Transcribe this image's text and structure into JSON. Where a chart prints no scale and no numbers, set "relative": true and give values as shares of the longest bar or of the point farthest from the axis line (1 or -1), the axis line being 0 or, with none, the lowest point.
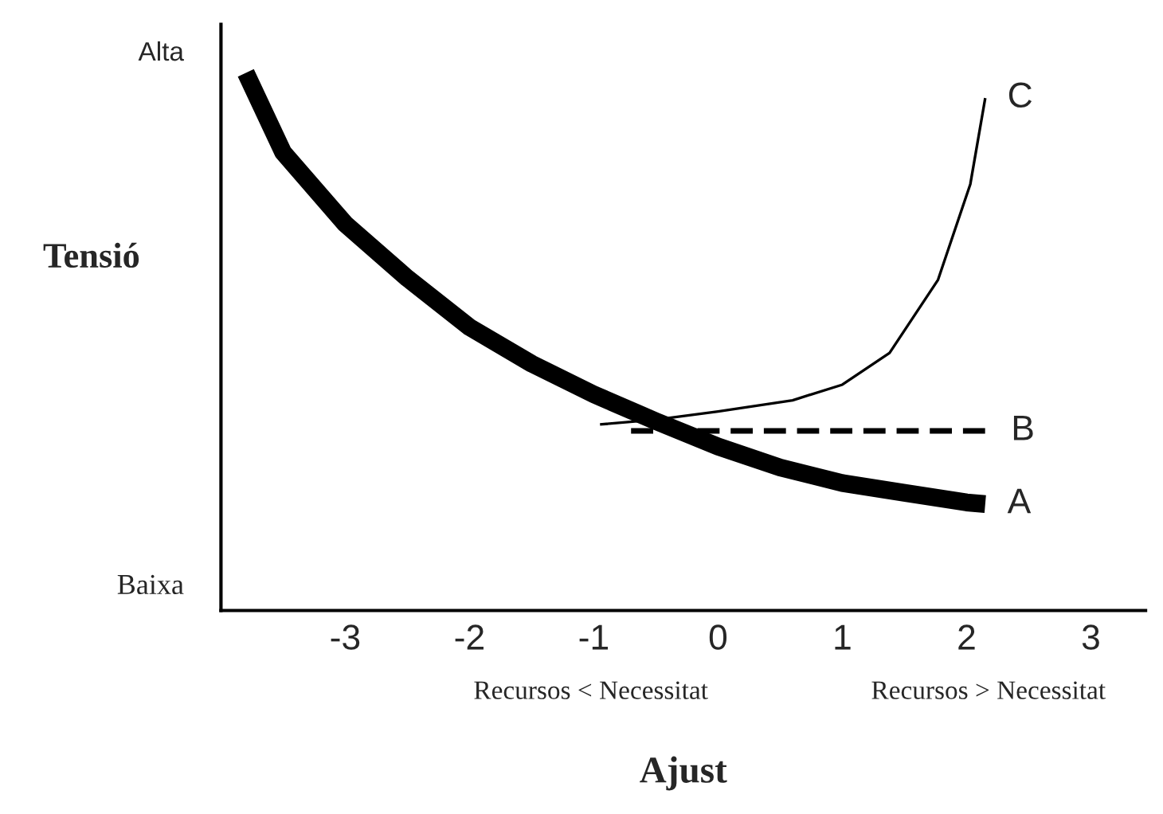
{
  "chart_data": {
    "type": "line",
    "relative": true,
    "xlabel": "Ajust",
    "ylabel": "Tensió",
    "xlim": [
      -4.0,
      3.44
    ],
    "xticks": [
      -3,
      -2,
      -1,
      0,
      1,
      2,
      3
    ],
    "series": [
      {
        "name": "A",
        "color": "#000000",
        "line_style": "solid",
        "x": [
          -3.8,
          -3.5,
          -3,
          -2.5,
          -2,
          -1.5,
          -1,
          -0.5,
          0,
          0.5,
          1,
          1.5,
          2,
          2.15
        ],
        "values": [
          1,
          0.852,
          0.719,
          0.618,
          0.527,
          0.459,
          0.402,
          0.352,
          0.305,
          0.266,
          0.237,
          0.219,
          0.201,
          0.198
        ]
      },
      {
        "name": "B",
        "color": "#000000",
        "line_style": "dashed",
        "x": [
          -0.7,
          2.18
        ],
        "values": [
          0.334,
          0.334
        ]
      },
      {
        "name": "C",
        "color": "#000000",
        "line_style": "solid",
        "x": [
          -0.95,
          -0.5,
          0,
          0.6,
          1,
          1.38,
          1.77,
          2.03,
          2.15
        ],
        "values": [
          0.346,
          0.355,
          0.37,
          0.391,
          0.42,
          0.479,
          0.615,
          0.793,
          0.953
        ]
      }
    ],
    "annotations": [
      "Alta",
      "Baixa",
      "Recursos < Necessitat",
      "Recursos > Necessitat"
    ],
    "grid": false,
    "marker": "none"
  }
}
